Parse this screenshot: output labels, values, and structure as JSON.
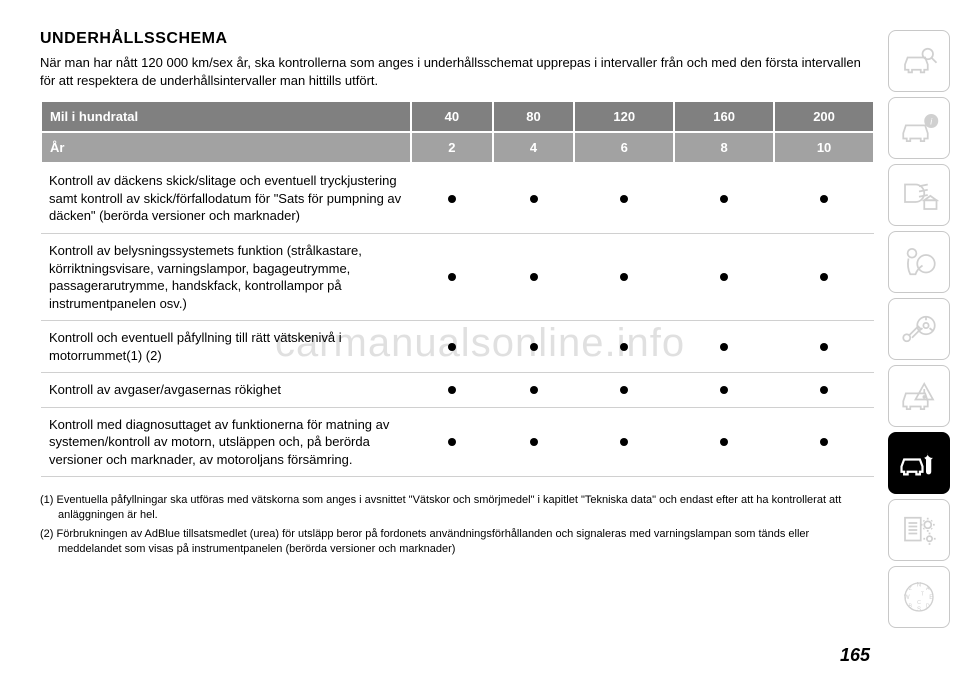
{
  "title": "UNDERHÅLLSSCHEMA",
  "intro": "När man har nått 120 000 km/sex år, ska kontrollerna som anges i underhållsschemat upprepas i intervaller från och med den första intervallen för att respektera de underhållsintervaller man hittills utfört.",
  "table": {
    "header1_label": "Mil i hundratal",
    "header1_values": [
      "40",
      "80",
      "120",
      "160",
      "200"
    ],
    "header2_label": "År",
    "header2_values": [
      "2",
      "4",
      "6",
      "8",
      "10"
    ],
    "rows": [
      {
        "label": "Kontroll av däckens skick/slitage och eventuell tryckjustering samt kontroll av skick/förfallodatum för \"Sats för pumpning av däcken\" (berörda versioner och marknader)",
        "dots": [
          true,
          true,
          true,
          true,
          true
        ]
      },
      {
        "label": "Kontroll av belysningssystemets funktion (strålkastare, körriktningsvisare, varningslampor, bagageutrymme, passagerarutrymme, handskfack, kontrollampor på instrumentpanelen osv.)",
        "dots": [
          true,
          true,
          true,
          true,
          true
        ]
      },
      {
        "label": "Kontroll och eventuell påfyllning till rätt vätskenivå i motorrummet(1) (2)",
        "dots": [
          true,
          true,
          true,
          true,
          true
        ]
      },
      {
        "label": "Kontroll av avgaser/avgasernas rökighet",
        "dots": [
          true,
          true,
          true,
          true,
          true
        ]
      },
      {
        "label": "Kontroll med diagnosuttaget av funktionerna för matning av systemen/kontroll av motorn, utsläppen och, på berörda versioner och marknader, av motoroljans försämring.",
        "dots": [
          true,
          true,
          true,
          true,
          true
        ]
      }
    ]
  },
  "footnotes": [
    "(1) Eventuella påfyllningar ska utföras med vätskorna som anges i avsnittet \"Vätskor och smörjmedel\" i kapitlet \"Tekniska data\" och endast efter att ha kontrollerat att anläggningen är hel.",
    "(2) Förbrukningen av AdBlue tillsatsmedlet (urea) för utsläpp beror på fordonets användningsförhållanden och signaleras med varningslampan som tänds eller meddelandet som visas på instrumentpanelen (berörda versioner och marknader)"
  ],
  "watermark": "carmanualsonline.info",
  "page_number": "165",
  "sidebar": [
    {
      "name": "car-search-icon",
      "active": false
    },
    {
      "name": "car-info-icon",
      "active": false
    },
    {
      "name": "lights-icon",
      "active": false
    },
    {
      "name": "airbag-icon",
      "active": false
    },
    {
      "name": "key-steering-icon",
      "active": false
    },
    {
      "name": "car-warning-icon",
      "active": false
    },
    {
      "name": "car-service-icon",
      "active": true
    },
    {
      "name": "doc-gear-icon",
      "active": false
    },
    {
      "name": "compass-icon",
      "active": false
    }
  ],
  "colors": {
    "header_bg": "#808080",
    "header2_bg": "#a2a2a2",
    "header_text": "#ffffff",
    "row_border": "#d0d0d0",
    "sidebar_border": "#c8c8c8",
    "sidebar_inactive": "#d0d0d0",
    "sidebar_active_bg": "#000000",
    "watermark": "rgba(0,0,0,0.12)"
  }
}
